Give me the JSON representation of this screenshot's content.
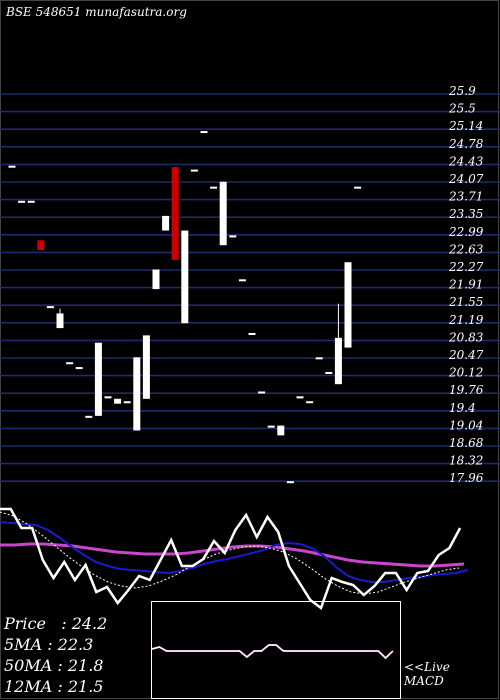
{
  "title": "BSE 548651 munafasutra.org",
  "colors": {
    "background": "#000000",
    "grid": "#1c2a6e",
    "candle_up": "#ffffff",
    "candle_down": "#cc0000",
    "price_line": "#ffffff",
    "ma_blue": "#1a1acc",
    "ma_magenta": "#cc44cc",
    "ma_dotted": "#ffffff",
    "text": "#ffffff"
  },
  "stats": {
    "price": "Price   : 24.2",
    "ma5": "5MA : 22.3",
    "ma50": "50MA : 21.8",
    "ma12": "12MA : 21.5"
  },
  "macd_label_1": "<<Live",
  "macd_label_2": "MACD",
  "chart_data": {
    "type": "candlestick",
    "y_ticks": [
      "25.9",
      "25.5",
      "25.14",
      "24.78",
      "24.43",
      "24.07",
      "23.71",
      "23.35",
      "22.99",
      "22.63",
      "22.27",
      "21.91",
      "21.55",
      "21.19",
      "20.83",
      "20.47",
      "20.12",
      "19.76",
      "19.4",
      "19.04",
      "18.68",
      "18.32",
      "17.96"
    ],
    "ylim": [
      17.96,
      25.9
    ],
    "candles": [
      {
        "o": 24.43,
        "c": 24.43,
        "h": 24.43,
        "l": 24.43
      },
      {
        "o": 23.71,
        "c": 23.71,
        "h": 23.71,
        "l": 23.71
      },
      {
        "o": 23.71,
        "c": 23.71,
        "h": 23.71,
        "l": 23.71
      },
      {
        "o": 22.9,
        "c": 22.7,
        "h": 22.9,
        "l": 22.7
      },
      {
        "o": 21.55,
        "c": 21.55,
        "h": 21.55,
        "l": 21.55
      },
      {
        "o": 21.1,
        "c": 21.4,
        "h": 21.5,
        "l": 21.1
      },
      {
        "o": 20.4,
        "c": 20.4,
        "h": 20.4,
        "l": 20.4
      },
      {
        "o": 20.3,
        "c": 20.3,
        "h": 20.3,
        "l": 20.3
      },
      {
        "o": 19.3,
        "c": 19.3,
        "h": 19.3,
        "l": 19.3
      },
      {
        "o": 19.3,
        "c": 20.8,
        "h": 20.8,
        "l": 19.3
      },
      {
        "o": 19.7,
        "c": 19.7,
        "h": 19.7,
        "l": 19.7
      },
      {
        "o": 19.55,
        "c": 19.65,
        "h": 19.65,
        "l": 19.55
      },
      {
        "o": 19.6,
        "c": 19.6,
        "h": 19.6,
        "l": 19.6
      },
      {
        "o": 19.0,
        "c": 20.5,
        "h": 20.5,
        "l": 19.0
      },
      {
        "o": 19.65,
        "c": 20.95,
        "h": 20.95,
        "l": 19.65
      },
      {
        "o": 21.9,
        "c": 22.3,
        "h": 22.3,
        "l": 21.9
      },
      {
        "o": 23.1,
        "c": 23.4,
        "h": 23.4,
        "l": 23.1
      },
      {
        "o": 24.4,
        "c": 22.5,
        "h": 24.4,
        "l": 22.5
      },
      {
        "o": 21.2,
        "c": 23.1,
        "h": 23.1,
        "l": 21.2
      },
      {
        "o": 24.35,
        "c": 24.35,
        "h": 24.35,
        "l": 24.35
      },
      {
        "o": 25.14,
        "c": 25.14,
        "h": 25.14,
        "l": 25.14
      },
      {
        "o": 24.0,
        "c": 24.0,
        "h": 24.0,
        "l": 24.0
      },
      {
        "o": 22.8,
        "c": 24.1,
        "h": 24.1,
        "l": 22.8
      },
      {
        "o": 23.0,
        "c": 23.0,
        "h": 23.0,
        "l": 23.0
      },
      {
        "o": 22.1,
        "c": 22.1,
        "h": 22.1,
        "l": 22.1
      },
      {
        "o": 21.0,
        "c": 21.0,
        "h": 21.0,
        "l": 21.0
      },
      {
        "o": 19.8,
        "c": 19.8,
        "h": 19.8,
        "l": 19.8
      },
      {
        "o": 19.1,
        "c": 19.1,
        "h": 19.1,
        "l": 19.1
      },
      {
        "o": 18.9,
        "c": 19.1,
        "h": 19.1,
        "l": 18.9
      },
      {
        "o": 17.96,
        "c": 17.96,
        "h": 17.96,
        "l": 17.96
      },
      {
        "o": 19.7,
        "c": 19.7,
        "h": 19.7,
        "l": 19.7
      },
      {
        "o": 19.6,
        "c": 19.6,
        "h": 19.6,
        "l": 19.6
      },
      {
        "o": 20.5,
        "c": 20.5,
        "h": 20.5,
        "l": 20.5
      },
      {
        "o": 20.2,
        "c": 20.2,
        "h": 20.2,
        "l": 20.2
      },
      {
        "o": 19.95,
        "c": 20.9,
        "h": 21.6,
        "l": 19.95
      },
      {
        "o": 20.7,
        "c": 22.45,
        "h": 22.45,
        "l": 20.7
      },
      {
        "o": 24.0,
        "c": 24.0,
        "h": 24.0,
        "l": 24.0
      }
    ],
    "price_line": [
      509,
      509,
      528,
      528,
      560,
      578,
      562,
      580,
      565,
      592,
      587,
      603,
      590,
      576,
      580,
      560,
      540,
      566,
      566,
      559,
      541,
      553,
      530,
      515,
      537,
      517,
      532,
      566,
      583,
      600,
      608,
      578,
      582,
      585,
      595,
      586,
      573,
      573,
      590,
      573,
      571,
      555,
      548,
      528
    ],
    "ma_blue": [
      522,
      523,
      524,
      525,
      530,
      538,
      547,
      555,
      562,
      566,
      569,
      570,
      571,
      572,
      573,
      571,
      568,
      564,
      561,
      559,
      556,
      553,
      550,
      545,
      543,
      544,
      548,
      556,
      567,
      576,
      580,
      582,
      582,
      580,
      578,
      577,
      575,
      574,
      573,
      570
    ],
    "ma_magenta": [
      545,
      545,
      544,
      544,
      545,
      546,
      548,
      550,
      552,
      553,
      554,
      554,
      554,
      553,
      551,
      549,
      547,
      546,
      546,
      547,
      549,
      551,
      554,
      557,
      560,
      562,
      563,
      564,
      565,
      566,
      566,
      565,
      564
    ],
    "ma_dotted": [
      512,
      516,
      524,
      534,
      545,
      556,
      566,
      575,
      582,
      586,
      588,
      586,
      581,
      575,
      567,
      560,
      554,
      550,
      547,
      546,
      548,
      552,
      559,
      568,
      578,
      586,
      592,
      594,
      592,
      587,
      582,
      578,
      574,
      570,
      568
    ],
    "macd_line": [
      0.1,
      0.2,
      0.0,
      0.0,
      0.0,
      0.0,
      0.0,
      0.0,
      0.0,
      0.0,
      0.0,
      0.0,
      0.0,
      -0.3,
      0.0,
      0.0,
      0.3,
      0.3,
      0.0,
      0.0,
      0.0,
      0.0,
      0.0,
      0.0,
      0.0,
      0.0,
      0.0,
      0.0,
      0.0,
      0.0,
      0.0,
      0.0,
      -0.35,
      0.0
    ]
  }
}
